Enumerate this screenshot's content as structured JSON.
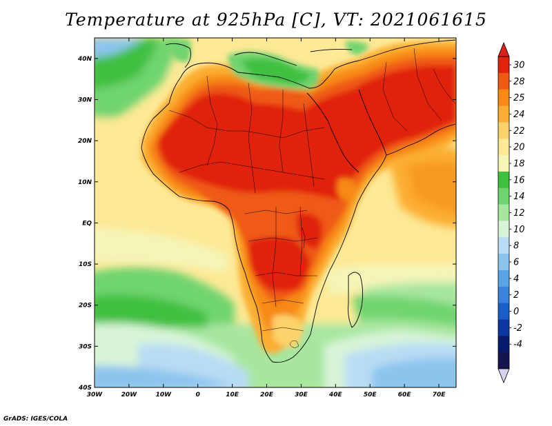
{
  "title": "Temperature at 925hPa [C], VT: 2021061615",
  "credit": "GrADS: IGES/COLA",
  "map": {
    "lon_range": [
      -30,
      75
    ],
    "lat_range": [
      -40,
      45
    ],
    "lon_ticks": [
      {
        "value": -30,
        "label": "30W"
      },
      {
        "value": -20,
        "label": "20W"
      },
      {
        "value": -10,
        "label": "10W"
      },
      {
        "value": 0,
        "label": "0"
      },
      {
        "value": 10,
        "label": "10E"
      },
      {
        "value": 20,
        "label": "20E"
      },
      {
        "value": 30,
        "label": "30E"
      },
      {
        "value": 40,
        "label": "40E"
      },
      {
        "value": 50,
        "label": "50E"
      },
      {
        "value": 60,
        "label": "60E"
      },
      {
        "value": 70,
        "label": "70E"
      }
    ],
    "lat_ticks": [
      {
        "value": 40,
        "label": "40N"
      },
      {
        "value": 30,
        "label": "30N"
      },
      {
        "value": 20,
        "label": "20N"
      },
      {
        "value": 10,
        "label": "10N"
      },
      {
        "value": 0,
        "label": "EQ"
      },
      {
        "value": -10,
        "label": "10S"
      },
      {
        "value": -20,
        "label": "20S"
      },
      {
        "value": -30,
        "label": "30S"
      },
      {
        "value": -40,
        "label": "40S"
      }
    ]
  },
  "colorbar": {
    "levels": [
      "30",
      "28",
      "25",
      "24",
      "22",
      "20",
      "18",
      "16",
      "14",
      "12",
      "10",
      "8",
      "6",
      "4",
      "2",
      "0",
      "-2",
      "-4"
    ],
    "colors": [
      "#e0240f",
      "#ef5a13",
      "#f78a14",
      "#fbae33",
      "#fdd26a",
      "#fde996",
      "#f5f5b8",
      "#3fbf3f",
      "#6fd46f",
      "#a8e6a0",
      "#d8f4d8",
      "#b8dcf4",
      "#8cc4ee",
      "#5aa4e6",
      "#3c82dc",
      "#1a5cc8",
      "#0c36a0",
      "#061a6e",
      "#141450"
    ],
    "top_arrow_color": "#d8221a",
    "bottom_arrow_color": "#d8d4f0"
  }
}
